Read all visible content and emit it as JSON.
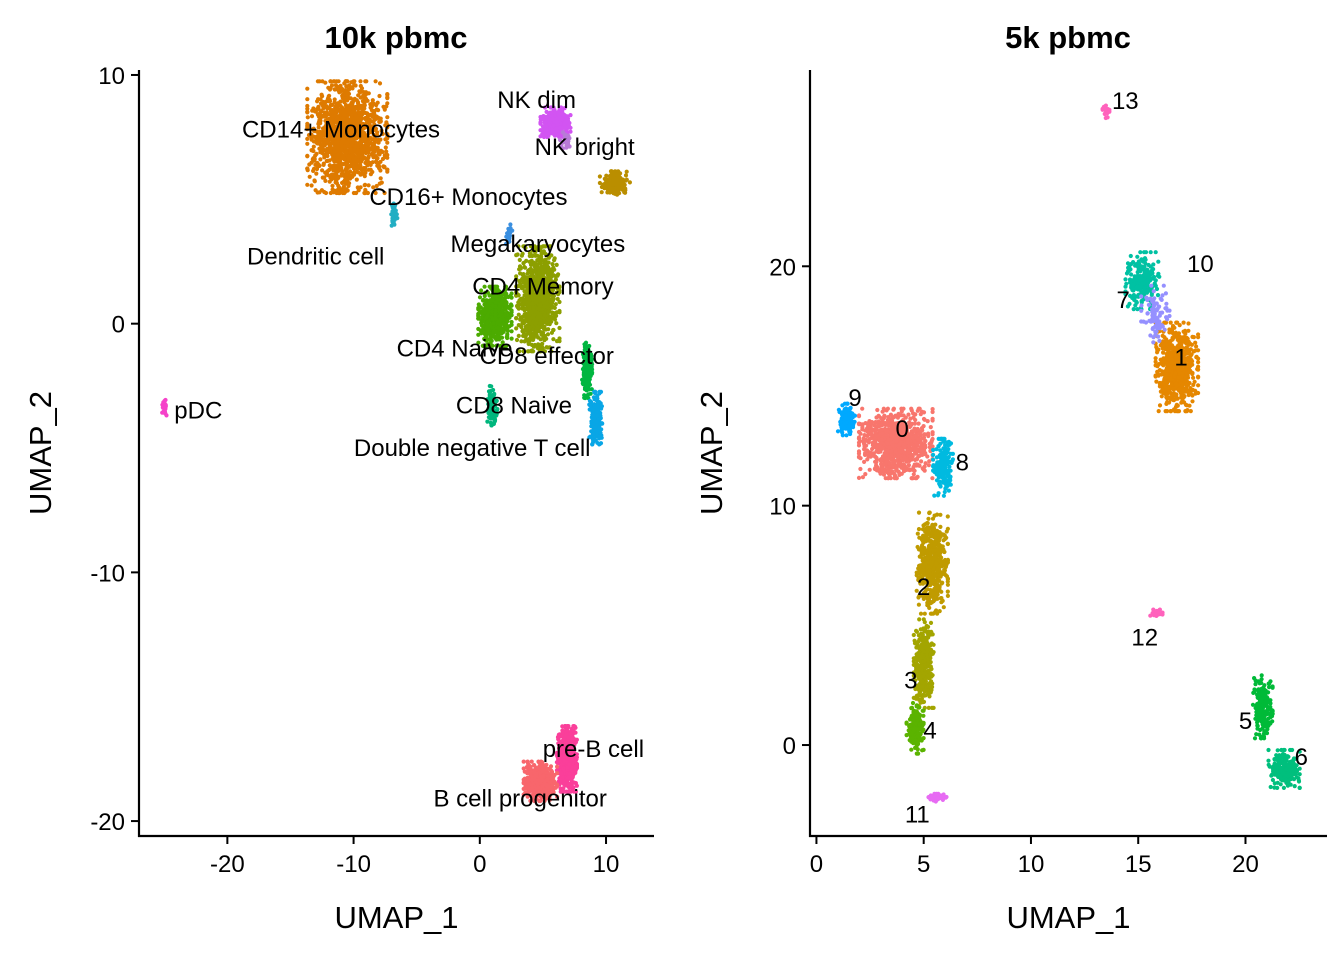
{
  "chart_data": [
    {
      "type": "scatter",
      "title": "10k pbmc",
      "xlabel": "UMAP_1",
      "ylabel": "UMAP_2",
      "xlim": [
        -27.0,
        13.8
      ],
      "ylim": [
        -20.6,
        10.2
      ],
      "xticks": [
        -20,
        -10,
        0,
        10
      ],
      "xtick_labels": [
        "-20",
        "-10",
        "0",
        "10"
      ],
      "yticks": [
        -20,
        -10,
        0,
        10
      ],
      "ytick_labels": [
        "-20",
        "-10",
        "0",
        "10"
      ],
      "grid": false,
      "legend": "none",
      "clusters": [
        {
          "label": "CD14+ Monocytes",
          "color": "#DE7A00",
          "center": [
            -10.5,
            7.5
          ],
          "spread": [
            2.4,
            1.7
          ],
          "count": 1400,
          "label_pos": [
            -11,
            7.8
          ],
          "label_anchor": "middle"
        },
        {
          "label": "NK dim",
          "color": "#D254F2",
          "center": [
            6.0,
            8.1
          ],
          "spread": [
            0.9,
            0.45
          ],
          "count": 300,
          "label_pos": [
            4.5,
            9.0
          ],
          "label_anchor": "middle"
        },
        {
          "label": "NK bright",
          "color": "#B97AD8",
          "center": [
            6.8,
            7.3
          ],
          "spread": [
            0.4,
            0.3
          ],
          "count": 40,
          "label_pos": [
            8.3,
            7.1
          ],
          "label_anchor": "middle"
        },
        {
          "label": "CD16+ Monocytes",
          "color": "#BA8E00",
          "center": [
            10.7,
            5.6
          ],
          "spread": [
            0.9,
            0.4
          ],
          "count": 160,
          "label_pos": [
            -0.9,
            5.1
          ],
          "label_anchor": "middle"
        },
        {
          "label": "Dendritic cell",
          "color": "#22AEC3",
          "center": [
            -6.8,
            4.3
          ],
          "spread": [
            0.2,
            0.4
          ],
          "count": 40,
          "label_pos": [
            -13.0,
            2.7
          ],
          "label_anchor": "middle"
        },
        {
          "label": "Megakaryocytes",
          "color": "#3A8FE0",
          "center": [
            2.3,
            3.6
          ],
          "spread": [
            0.2,
            0.3
          ],
          "count": 25,
          "label_pos": [
            4.6,
            3.2
          ],
          "label_anchor": "middle"
        },
        {
          "label": "CD4 Memory",
          "color": "#8C9F00",
          "center": [
            4.6,
            1.0
          ],
          "spread": [
            1.3,
            1.6
          ],
          "count": 900,
          "label_pos": [
            5.0,
            1.5
          ],
          "label_anchor": "middle"
        },
        {
          "label": "CD4 Naive",
          "color": "#4CAB00",
          "center": [
            1.2,
            0.3
          ],
          "spread": [
            1.0,
            0.9
          ],
          "count": 600,
          "label_pos": [
            -2.0,
            -1.0
          ],
          "label_anchor": "middle"
        },
        {
          "label": "CD8 effector",
          "color": "#00B640",
          "center": [
            8.5,
            -1.8
          ],
          "spread": [
            0.3,
            0.9
          ],
          "count": 200,
          "label_pos": [
            5.3,
            -1.3
          ],
          "label_anchor": "middle"
        },
        {
          "label": "CD8 Naive",
          "color": "#00B67D",
          "center": [
            1.0,
            -3.3
          ],
          "spread": [
            0.3,
            0.6
          ],
          "count": 120,
          "label_pos": [
            2.7,
            -3.3
          ],
          "label_anchor": "middle"
        },
        {
          "label": "Double negative T cell",
          "color": "#09A6E6",
          "center": [
            9.2,
            -3.8
          ],
          "spread": [
            0.4,
            0.8
          ],
          "count": 200,
          "label_pos": [
            -0.6,
            -5.0
          ],
          "label_anchor": "middle"
        },
        {
          "label": "pDC",
          "color": "#F542C9",
          "center": [
            -25.0,
            -3.4
          ],
          "spread": [
            0.15,
            0.25
          ],
          "count": 25,
          "label_pos": [
            -24.2,
            -3.5
          ],
          "label_anchor": "start"
        },
        {
          "label": "pre-B cell",
          "color": "#FA3F9A",
          "center": [
            6.9,
            -17.5
          ],
          "spread": [
            0.6,
            1.0
          ],
          "count": 500,
          "label_pos": [
            9.0,
            -17.1
          ],
          "label_anchor": "middle"
        },
        {
          "label": "B cell progenitor",
          "color": "#F8666C",
          "center": [
            4.8,
            -18.4
          ],
          "spread": [
            1.0,
            0.6
          ],
          "count": 350,
          "label_pos": [
            3.2,
            -19.1
          ],
          "label_anchor": "middle"
        }
      ]
    },
    {
      "type": "scatter",
      "title": "5k pbmc",
      "xlabel": "UMAP_1",
      "ylabel": "UMAP_2",
      "xlim": [
        -0.3,
        23.8
      ],
      "ylim": [
        -3.8,
        28.2
      ],
      "xticks": [
        0,
        5,
        10,
        15,
        20
      ],
      "xtick_labels": [
        "0",
        "5",
        "10",
        "15",
        "20"
      ],
      "yticks": [
        0,
        10,
        20
      ],
      "ytick_labels": [
        "0",
        "10",
        "20"
      ],
      "grid": false,
      "legend": "none",
      "clusters": [
        {
          "label": "0",
          "color": "#F8766D",
          "center": [
            3.7,
            12.6
          ],
          "spread": [
            1.3,
            1.1
          ],
          "count": 900,
          "label_pos": [
            4.0,
            13.2
          ],
          "label_anchor": "middle"
        },
        {
          "label": "1",
          "color": "#E58700",
          "center": [
            16.8,
            15.8
          ],
          "spread": [
            0.75,
            1.4
          ],
          "count": 650,
          "label_pos": [
            17.0,
            16.2
          ],
          "label_anchor": "middle"
        },
        {
          "label": "2",
          "color": "#C09B00",
          "center": [
            5.4,
            7.6
          ],
          "spread": [
            0.55,
            1.6
          ],
          "count": 500,
          "label_pos": [
            5.0,
            6.6
          ],
          "label_anchor": "middle"
        },
        {
          "label": "3",
          "color": "#A3A500",
          "center": [
            5.0,
            3.4
          ],
          "spread": [
            0.35,
            1.4
          ],
          "count": 350,
          "label_pos": [
            4.4,
            2.7
          ],
          "label_anchor": "middle"
        },
        {
          "label": "4",
          "color": "#5BB300",
          "center": [
            4.6,
            0.7
          ],
          "spread": [
            0.3,
            0.8
          ],
          "count": 180,
          "label_pos": [
            5.3,
            0.6
          ],
          "label_anchor": "middle"
        },
        {
          "label": "5",
          "color": "#00BA38",
          "center": [
            20.8,
            1.6
          ],
          "spread": [
            0.35,
            1.0
          ],
          "count": 200,
          "label_pos": [
            20.0,
            1.0
          ],
          "label_anchor": "middle"
        },
        {
          "label": "6",
          "color": "#00BF7D",
          "center": [
            21.8,
            -1.0
          ],
          "spread": [
            0.55,
            0.6
          ],
          "count": 220,
          "label_pos": [
            22.6,
            -0.5
          ],
          "label_anchor": "middle"
        },
        {
          "label": "7",
          "color": "#00C1A3",
          "center": [
            15.2,
            19.4
          ],
          "spread": [
            0.6,
            0.9
          ],
          "count": 220,
          "label_pos": [
            14.3,
            18.6
          ],
          "label_anchor": "middle"
        },
        {
          "label": "8",
          "color": "#00BAE0",
          "center": [
            5.9,
            11.6
          ],
          "spread": [
            0.35,
            0.9
          ],
          "count": 180,
          "label_pos": [
            6.8,
            11.8
          ],
          "label_anchor": "middle"
        },
        {
          "label": "9",
          "color": "#00A9FF",
          "center": [
            1.4,
            13.6
          ],
          "spread": [
            0.3,
            0.5
          ],
          "count": 130,
          "label_pos": [
            1.8,
            14.5
          ],
          "label_anchor": "middle"
        },
        {
          "label": "10",
          "color": "#9590FF",
          "center": [
            15.8,
            18.0
          ],
          "spread": [
            0.5,
            0.9
          ],
          "count": 90,
          "label_pos": [
            17.9,
            20.1
          ],
          "label_anchor": "middle"
        },
        {
          "label": "11",
          "color": "#E76BF3",
          "center": [
            5.6,
            -2.2
          ],
          "spread": [
            0.35,
            0.12
          ],
          "count": 40,
          "label_pos": [
            4.7,
            -2.9
          ],
          "label_anchor": "middle"
        },
        {
          "label": "12",
          "color": "#FF62BC",
          "center": [
            15.8,
            5.5
          ],
          "spread": [
            0.25,
            0.12
          ],
          "count": 25,
          "label_pos": [
            15.3,
            4.5
          ],
          "label_anchor": "middle"
        },
        {
          "label": "13",
          "color": "#FF62BC",
          "center": [
            13.5,
            26.4
          ],
          "spread": [
            0.12,
            0.25
          ],
          "count": 20,
          "label_pos": [
            14.4,
            26.9
          ],
          "label_anchor": "middle"
        }
      ]
    }
  ]
}
